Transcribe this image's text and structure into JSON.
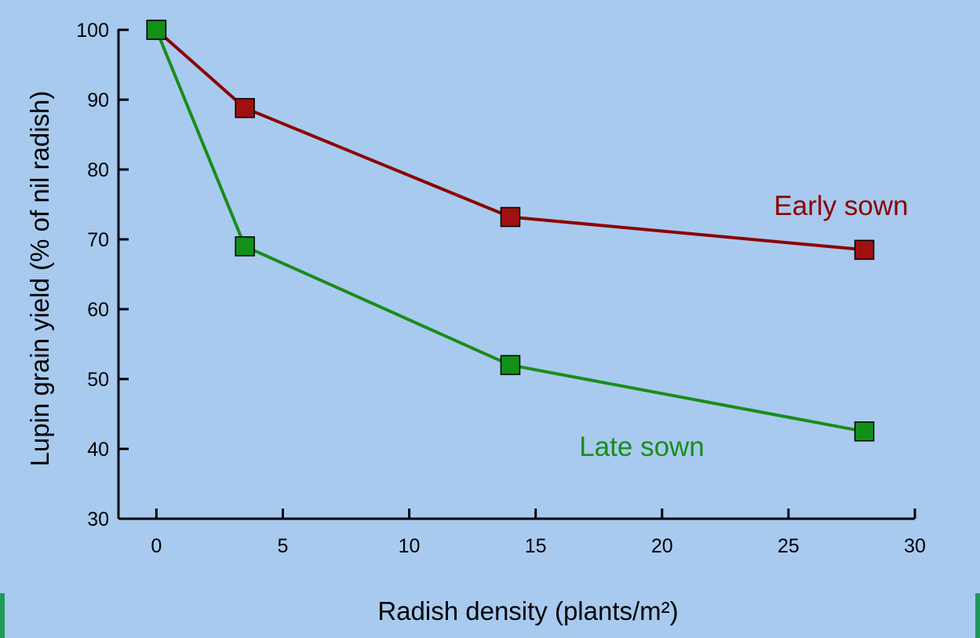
{
  "theme": {
    "background": "#a8caef",
    "edge_accent": "#1f9a5a",
    "axis_color": "#000000"
  },
  "chart_data": {
    "type": "line",
    "title": "",
    "xlabel": "Radish density (plants/m²)",
    "ylabel": "Lupin grain yield (% of nil radish)",
    "xlim": [
      -1.5,
      30
    ],
    "ylim": [
      30,
      100
    ],
    "x_ticks": [
      0,
      5,
      10,
      15,
      20,
      25,
      30
    ],
    "y_ticks": [
      30,
      40,
      50,
      60,
      70,
      80,
      90,
      100
    ],
    "grid": false,
    "legend": "none",
    "marker": "square",
    "series": [
      {
        "name": "Early sown",
        "color": "#8b0000",
        "marker_color": "#a01010",
        "x": [
          0,
          3.5,
          14,
          28
        ],
        "y": [
          100,
          88.8,
          73.2,
          68.5
        ]
      },
      {
        "name": "Late sown",
        "color": "#1a8c1a",
        "marker_color": "#11901a",
        "x": [
          0,
          3.5,
          14,
          28
        ],
        "y": [
          100,
          69,
          52,
          42.5
        ]
      }
    ]
  }
}
